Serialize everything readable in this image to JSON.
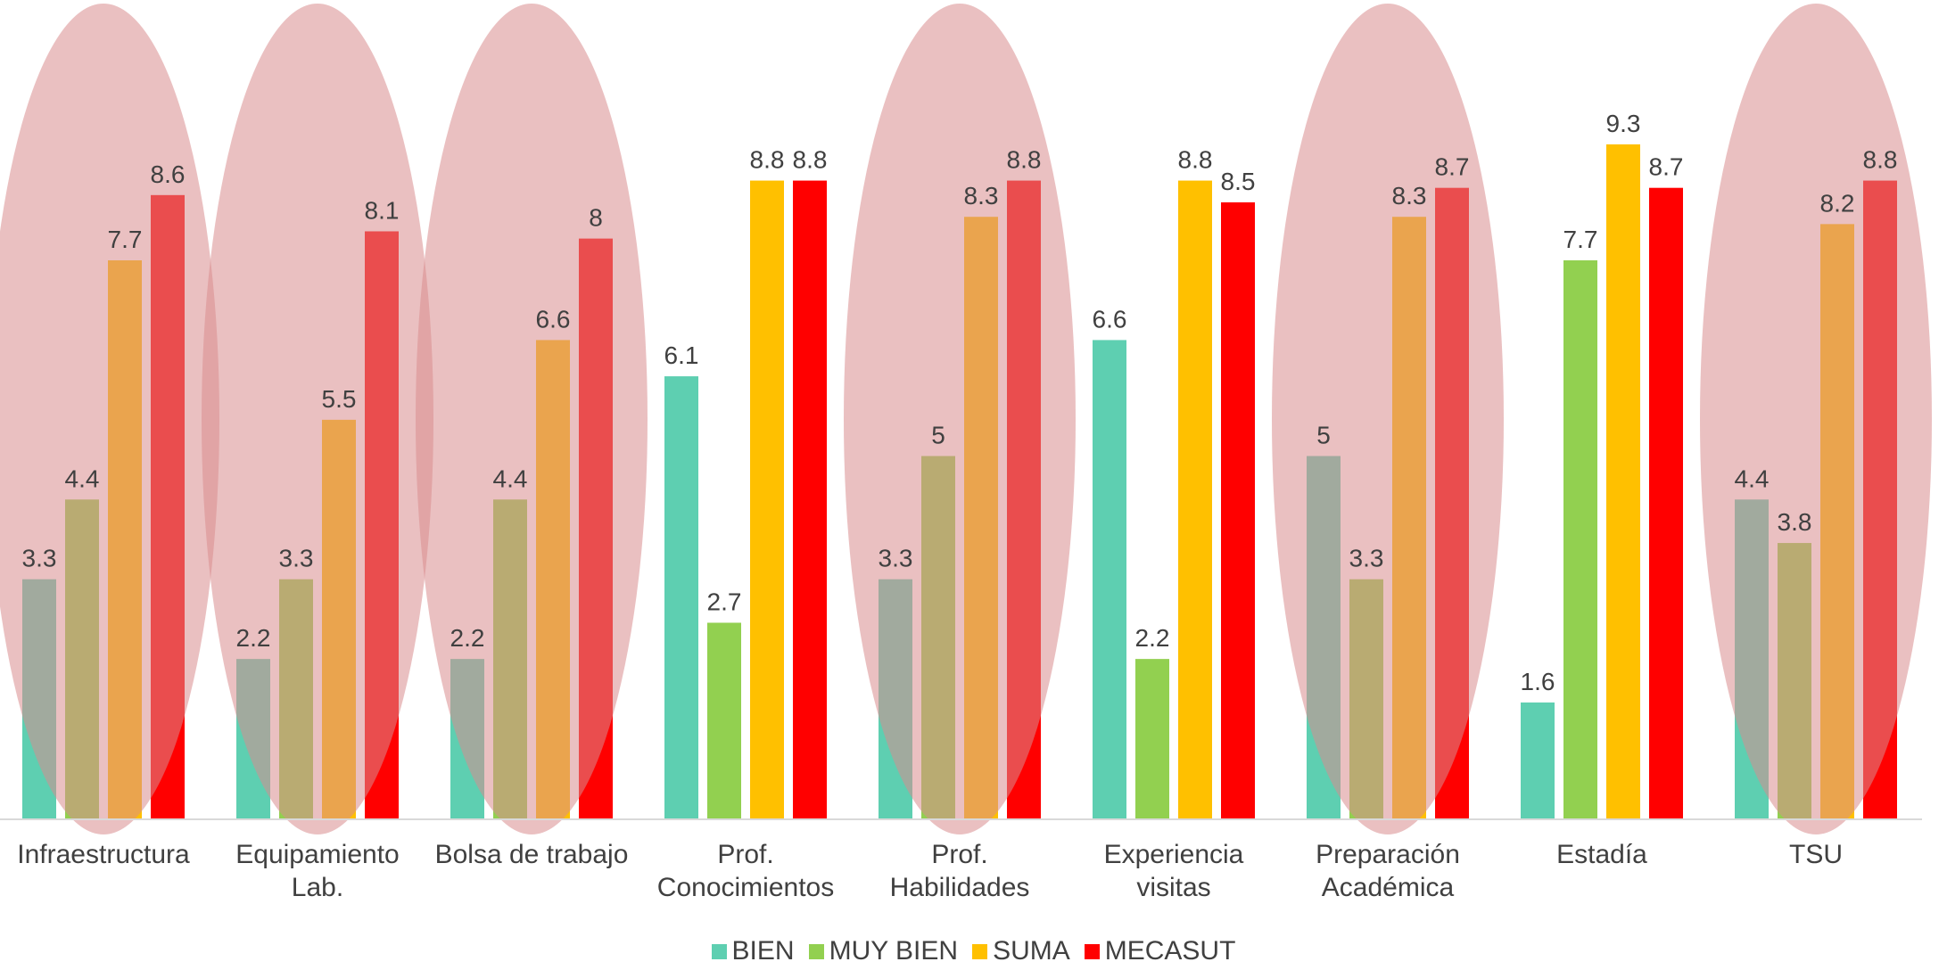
{
  "chart_data": {
    "type": "bar",
    "title": "",
    "xlabel": "",
    "ylabel": "",
    "ylim": [
      0,
      9.5
    ],
    "grid": false,
    "legend_position": "bottom",
    "categories": [
      [
        "Infraestructura"
      ],
      [
        "Equipamiento",
        "Lab."
      ],
      [
        "Bolsa de trabajo"
      ],
      [
        "Prof.",
        "Conocimientos"
      ],
      [
        "Prof.",
        "Habilidades"
      ],
      [
        "Experiencia",
        "visitas"
      ],
      [
        "Preparación",
        "Académica"
      ],
      [
        "Estadía"
      ],
      [
        "TSU"
      ]
    ],
    "series": [
      {
        "name": "BIEN",
        "color": "#5ECFB1",
        "values": [
          3.3,
          2.2,
          2.2,
          6.1,
          3.3,
          6.6,
          5,
          1.6,
          4.4
        ]
      },
      {
        "name": "MUY BIEN",
        "color": "#92D050",
        "values": [
          4.4,
          3.3,
          4.4,
          2.7,
          5,
          2.2,
          3.3,
          7.7,
          3.8
        ]
      },
      {
        "name": "SUMA",
        "color": "#FFC000",
        "values": [
          7.7,
          5.5,
          6.6,
          8.8,
          8.3,
          8.8,
          8.3,
          9.3,
          8.2
        ]
      },
      {
        "name": "MECASUT",
        "color": "#FF0000",
        "values": [
          8.6,
          8.1,
          8,
          8.8,
          8.8,
          8.5,
          8.7,
          8.7,
          8.8
        ]
      }
    ],
    "highlighted_categories": [
      0,
      1,
      2,
      4,
      6,
      8
    ],
    "highlight_color": "#D98C8E"
  }
}
